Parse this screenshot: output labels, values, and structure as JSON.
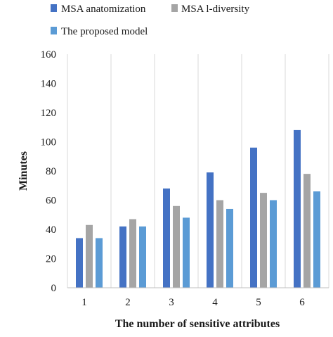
{
  "chart_data": {
    "type": "bar",
    "categories": [
      "1",
      "2",
      "3",
      "4",
      "5",
      "6"
    ],
    "series": [
      {
        "name": "MSA anatomization",
        "color": "#4472C4",
        "values": [
          34,
          42,
          68,
          79,
          96,
          108
        ]
      },
      {
        "name": "MSA l-diversity",
        "color": "#A5A5A5",
        "values": [
          43,
          47,
          56,
          60,
          65,
          78
        ]
      },
      {
        "name": "The proposed model",
        "color": "#5B9BD5",
        "values": [
          34,
          42,
          48,
          54,
          60,
          66
        ]
      }
    ],
    "xlabel": "The number of sensitive attributes",
    "ylabel": "Minutes",
    "ylim": [
      0,
      160
    ],
    "yticks": [
      "0",
      "20",
      "40",
      "60",
      "80",
      "100",
      "120",
      "140",
      "160"
    ],
    "grid": "vertical",
    "legend_position": "top"
  }
}
